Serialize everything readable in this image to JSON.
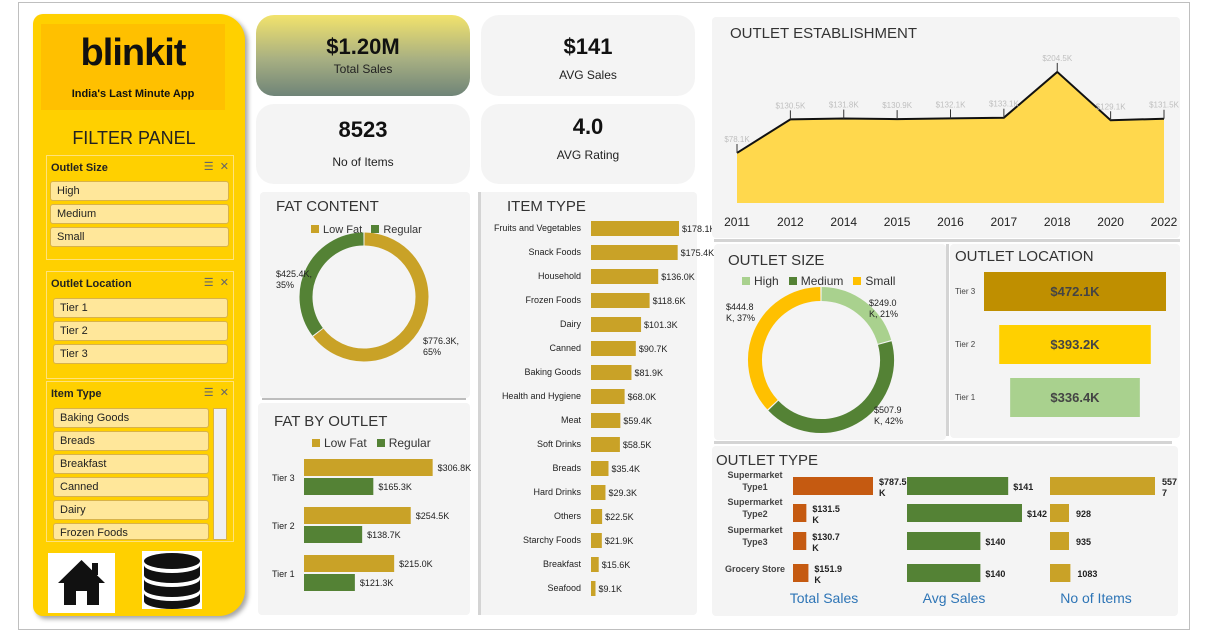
{
  "brand": {
    "logo": "blinkit",
    "tagline": "India's Last Minute App"
  },
  "filter_panel": {
    "title": "FILTER PANEL",
    "outlet_size": {
      "title": "Outlet Size",
      "items": [
        "High",
        "Medium",
        "Small"
      ]
    },
    "outlet_location": {
      "title": "Outlet Location",
      "items": [
        "Tier 1",
        "Tier 2",
        "Tier 3"
      ]
    },
    "item_type": {
      "title": "Item Type",
      "items": [
        "Baking Goods",
        "Breads",
        "Breakfast",
        "Canned",
        "Dairy",
        "Frozen Foods"
      ]
    }
  },
  "nav": {
    "home_icon": "home-icon",
    "data_icon": "database-icon"
  },
  "kpis": {
    "total_sales": {
      "value": "$1.20M",
      "label": "Total Sales"
    },
    "avg_sales": {
      "value": "$141",
      "label": "AVG Sales"
    },
    "no_of_items": {
      "value": "8523",
      "label": "No of Items"
    },
    "avg_rating": {
      "value": "4.0",
      "label": "AVG Rating"
    }
  },
  "colors": {
    "yellow": "#ffd000",
    "gold": "#c9a227",
    "green": "#548235",
    "light_green": "#a9d18e",
    "orange": "#c55a11",
    "blue": "#2e75b6"
  },
  "chart_data": [
    {
      "id": "outlet_establishment",
      "type": "area",
      "title": "OUTLET ESTABLISHMENT",
      "categories": [
        "2011",
        "2012",
        "2014",
        "2015",
        "2016",
        "2017",
        "2018",
        "2020",
        "2022"
      ],
      "values": [
        78.1,
        130.5,
        131.8,
        130.9,
        132.1,
        133.1,
        204.5,
        129.1,
        131.5
      ],
      "labels": [
        "$78.1K",
        "$130.5K",
        "$131.8K",
        "$130.9K",
        "$132.1K",
        "$133.1K",
        "$204.5K",
        "$129.1K",
        "$131.5K"
      ],
      "ylim": [
        0,
        220
      ]
    },
    {
      "id": "fat_content",
      "type": "pie",
      "title": "FAT CONTENT",
      "categories": [
        "Low Fat",
        "Regular"
      ],
      "values": [
        776.3,
        425.4
      ],
      "labels": [
        "$776.3K, 65%",
        "$425.4K, 35%"
      ],
      "legend": "top"
    },
    {
      "id": "item_type",
      "type": "bar",
      "title": "ITEM TYPE",
      "categories": [
        "Fruits and Vegetables",
        "Snack Foods",
        "Household",
        "Frozen Foods",
        "Dairy",
        "Canned",
        "Baking Goods",
        "Health and Hygiene",
        "Meat",
        "Soft Drinks",
        "Breads",
        "Hard Drinks",
        "Others",
        "Starchy Foods",
        "Breakfast",
        "Seafood"
      ],
      "values": [
        178.1,
        175.4,
        136.0,
        118.6,
        101.3,
        90.7,
        81.9,
        68.0,
        59.4,
        58.5,
        35.4,
        29.3,
        22.5,
        21.9,
        15.6,
        9.1
      ],
      "labels": [
        "$178.1K",
        "$175.4K",
        "$136.0K",
        "$118.6K",
        "$101.3K",
        "$90.7K",
        "$81.9K",
        "$68.0K",
        "$59.4K",
        "$58.5K",
        "$35.4K",
        "$29.3K",
        "$22.5K",
        "$21.9K",
        "$15.6K",
        "$9.1K"
      ]
    },
    {
      "id": "fat_by_outlet",
      "type": "bar",
      "title": "FAT BY OUTLET",
      "categories": [
        "Tier 3",
        "Tier 2",
        "Tier 1"
      ],
      "series": [
        {
          "name": "Low Fat",
          "values": [
            306.8,
            254.5,
            215.0
          ],
          "labels": [
            "$306.8K",
            "$254.5K",
            "$215.0K"
          ]
        },
        {
          "name": "Regular",
          "values": [
            165.3,
            138.7,
            121.3
          ],
          "labels": [
            "$165.3K",
            "$138.7K",
            "$121.3K"
          ]
        }
      ],
      "legend": "top"
    },
    {
      "id": "outlet_size",
      "type": "pie",
      "title": "OUTLET SIZE",
      "categories": [
        "High",
        "Medium",
        "Small"
      ],
      "values": [
        249.0,
        507.9,
        444.8
      ],
      "labels": [
        "$249.0 K, 21%",
        "$507.9 K, 42%",
        "$444.8 K, 37%"
      ],
      "legend": "top"
    },
    {
      "id": "outlet_location",
      "type": "bar",
      "title": "OUTLET LOCATION",
      "categories": [
        "Tier 3",
        "Tier 2",
        "Tier 1"
      ],
      "values": [
        472.1,
        393.2,
        336.4
      ],
      "labels": [
        "$472.1K",
        "$393.2K",
        "$336.4K"
      ]
    },
    {
      "id": "outlet_type",
      "type": "table",
      "title": "OUTLET TYPE",
      "rows": [
        "Supermarket Type1",
        "Supermarket Type2",
        "Supermarket Type3",
        "Grocery Store"
      ],
      "columns": [
        "Total Sales",
        "Avg Sales",
        "No of Items"
      ],
      "total_sales": [
        787.5,
        131.5,
        130.7,
        151.9
      ],
      "total_sales_labels": [
        "$787.5 K",
        "$131.5 K",
        "$130.7 K",
        "$151.9 K"
      ],
      "avg_sales": [
        141,
        142,
        140,
        140
      ],
      "avg_sales_labels": [
        "$141",
        "$142",
        "$140",
        "$140"
      ],
      "no_of_items": [
        5577,
        928,
        935,
        1083
      ],
      "no_of_items_labels": [
        "557 7",
        "928",
        "935",
        "1083"
      ]
    }
  ]
}
